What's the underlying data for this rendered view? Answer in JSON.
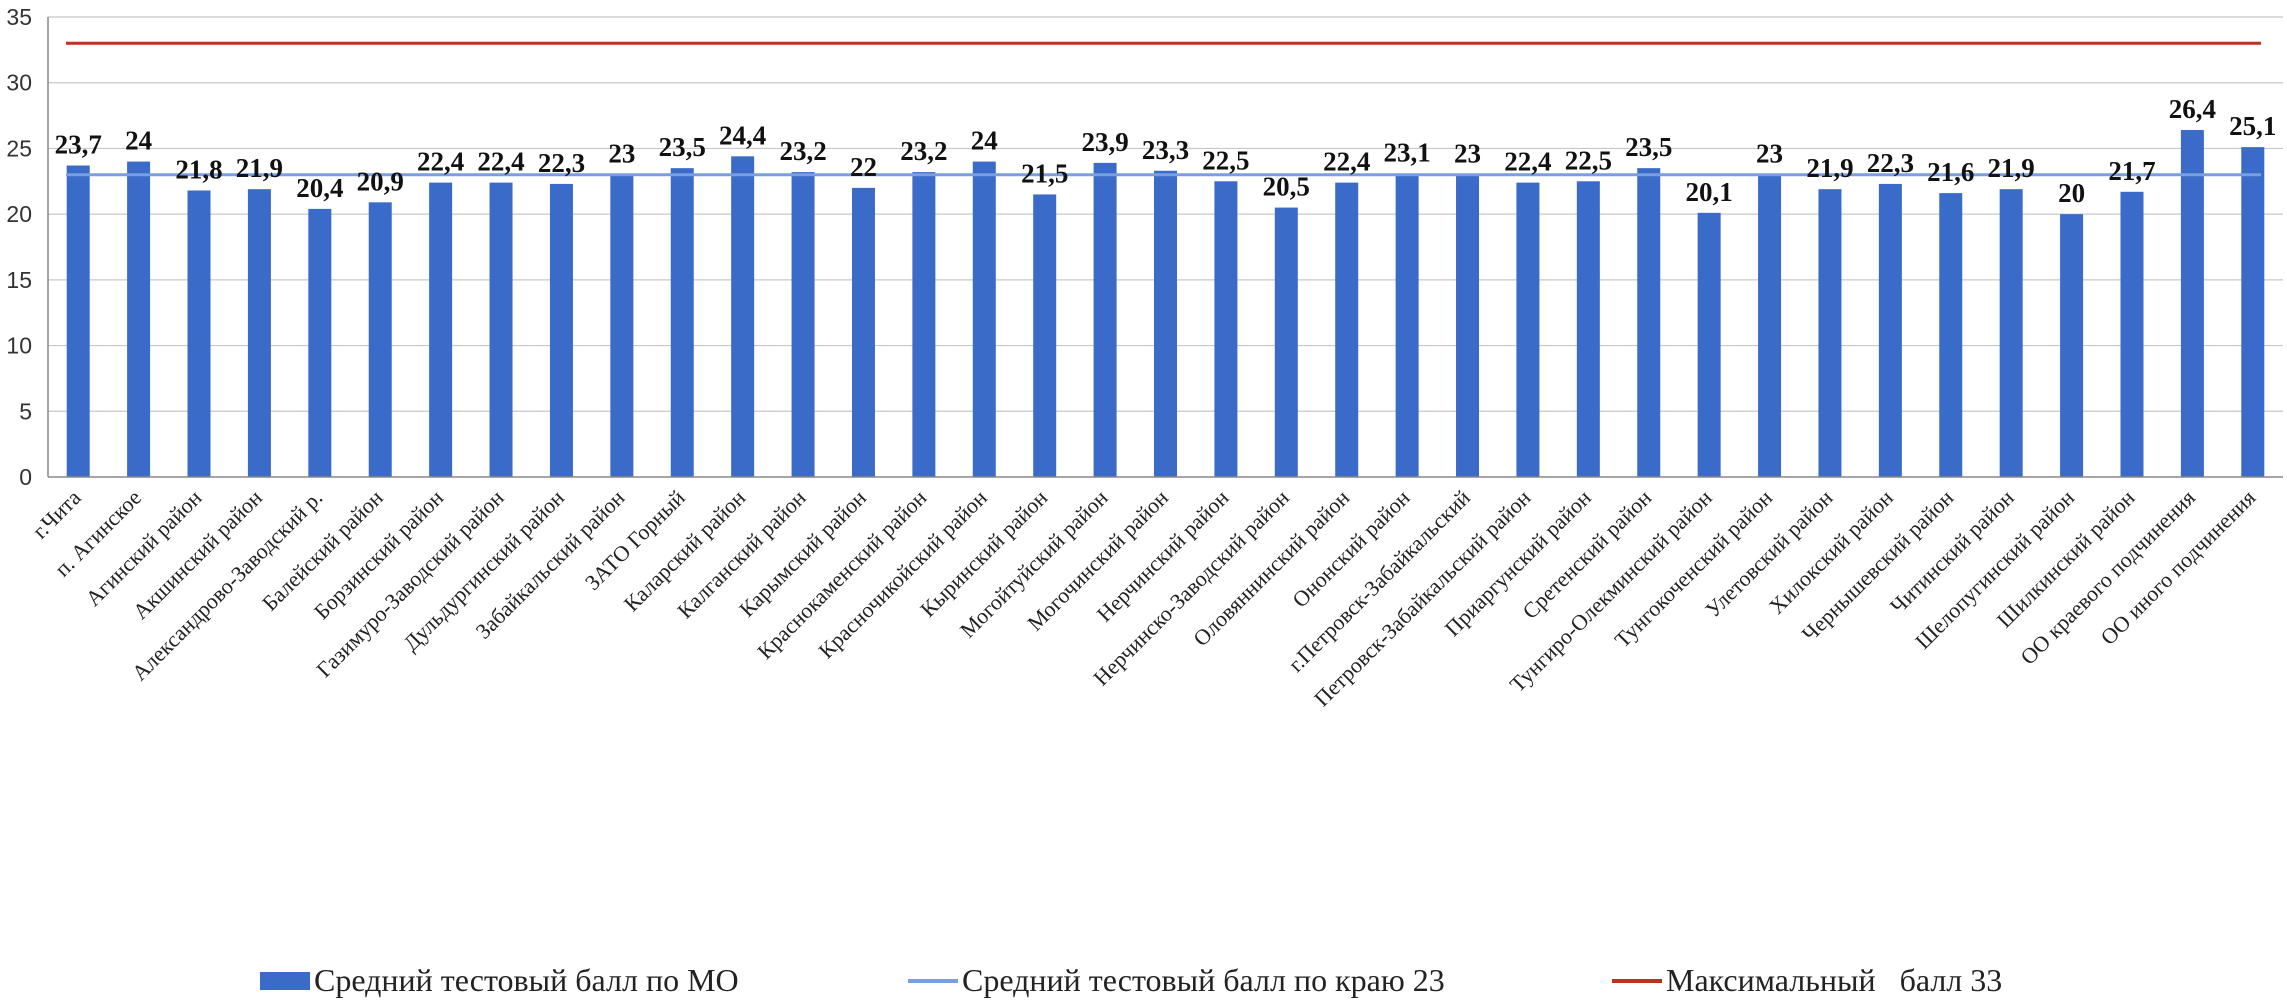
{
  "chart_data": {
    "type": "bar",
    "categories": [
      "г.Чита",
      "п. Агинское",
      "Агинский район",
      "Акшинский район",
      "Александрово-Заводский р.",
      "Балейский район",
      "Борзинский район",
      "Газимуро-Заводский район",
      "Дульдургинский район",
      "Забайкальский район",
      "ЗАТО Горный",
      "Каларский район",
      "Калганский район",
      "Карымский район",
      "Краснокаменский район",
      "Красночикойский район",
      "Кыринский район",
      "Могойтуйский район",
      "Могочинский район",
      "Нерчинский район",
      "Нерчинско-Заводский район",
      "Оловяннинский район",
      "Ононский район",
      "г.Петровск-Забайкальский",
      "Петровск-Забайкальский район",
      "Приаргунский район",
      "Сретенский район",
      "Тунгиро-Олекминский район",
      "Тунгокоченский район",
      "Улетовский район",
      "Хилокский район",
      "Чернышевский район",
      "Читинский район",
      "Шелопугинский район",
      "Шилкинский район",
      "ОО краевого подчинения",
      "ОО иного подчинения"
    ],
    "series": [
      {
        "name": "Средний тестовый балл по МО",
        "type": "bar",
        "color": "#3a6bc8",
        "values": [
          23.7,
          24,
          21.8,
          21.9,
          20.4,
          20.9,
          22.4,
          22.4,
          22.3,
          23,
          23.5,
          24.4,
          23.2,
          22,
          23.2,
          24,
          21.5,
          23.9,
          23.3,
          22.5,
          20.5,
          22.4,
          23.1,
          23,
          22.4,
          22.5,
          23.5,
          20.1,
          23,
          21.9,
          22.3,
          21.6,
          21.9,
          20,
          21.7,
          26.4,
          25.1
        ],
        "labels": [
          "23,7",
          "24",
          "21,8",
          "21,9",
          "20,4",
          "20,9",
          "22,4",
          "22,4",
          "22,3",
          "23",
          "23,5",
          "24,4",
          "23,2",
          "22",
          "23,2",
          "24",
          "21,5",
          "23,9",
          "23,3",
          "22,5",
          "20,5",
          "22,4",
          "23,1",
          "23",
          "22,4",
          "22,5",
          "23,5",
          "20,1",
          "23",
          "21,9",
          "22,3",
          "21,6",
          "21,9",
          "20",
          "21,7",
          "26,4",
          "25,1"
        ]
      },
      {
        "name": "Средний тестовый балл по краю 23",
        "type": "line",
        "color": "#7a9fe0",
        "value": 23
      },
      {
        "name": "Максимальный   балл 33",
        "type": "line",
        "color": "#c0301e",
        "value": 33
      }
    ],
    "ylim": [
      0,
      35
    ],
    "yticks": [
      0,
      5,
      10,
      15,
      20,
      25,
      30,
      35
    ],
    "grid": true,
    "legend_position": "bottom",
    "title": "",
    "xlabel": "",
    "ylabel": ""
  }
}
